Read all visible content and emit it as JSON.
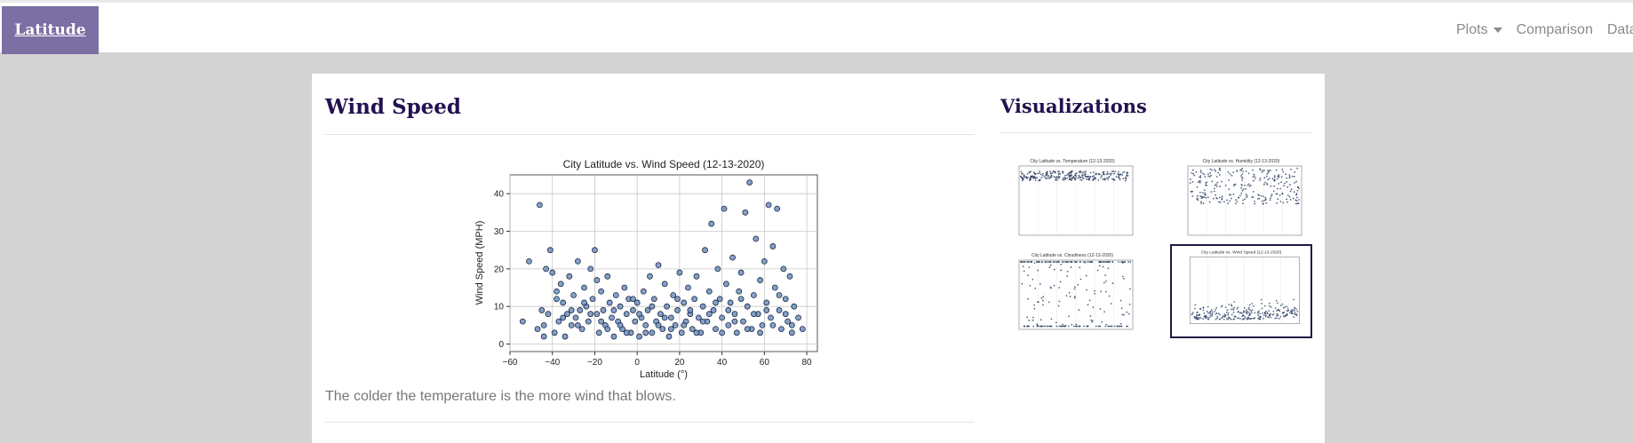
{
  "navbar": {
    "brand": "Latitude",
    "links": [
      {
        "label": "Plots",
        "has_dropdown": true
      },
      {
        "label": "Comparison",
        "has_dropdown": false
      },
      {
        "label": "Data",
        "has_dropdown": false
      }
    ]
  },
  "main": {
    "heading": "Wind Speed",
    "caption": "The colder the temperature is the more wind that blows."
  },
  "sidebar": {
    "heading": "Visualizations",
    "thumbnails": [
      {
        "title": "City Latitude vs. Temperature (12-13-2020)",
        "selected": false
      },
      {
        "title": "City Latitude vs. Humidity (12-13-2020)",
        "selected": false
      },
      {
        "title": "City Latitude vs. Cloudiness (12-13-2020)",
        "selected": false
      },
      {
        "title": "City Latitude vs. Wind Speed (12-13-2020)",
        "selected": true
      }
    ]
  },
  "colors": {
    "brand_bg": "#7c6fa3",
    "heading": "#24114f",
    "marker_fill": "#6f8fbf",
    "marker_edge": "#1d2a44"
  },
  "chart_data": {
    "type": "scatter",
    "title": "City Latitude vs. Wind Speed (12-13-2020)",
    "xlabel": "Latitude (°)",
    "ylabel": "Wind Speed (MPH)",
    "xlim": [
      -60,
      85
    ],
    "ylim": [
      -2,
      45
    ],
    "xticks": [
      -60,
      -40,
      -20,
      0,
      20,
      40,
      60,
      80
    ],
    "yticks": [
      0,
      10,
      20,
      30,
      40
    ],
    "grid": true,
    "points": [
      [
        -54,
        6
      ],
      [
        -51,
        22
      ],
      [
        -46,
        37
      ],
      [
        -45,
        9
      ],
      [
        -44,
        5
      ],
      [
        -43,
        20
      ],
      [
        -42,
        8
      ],
      [
        -41,
        25
      ],
      [
        -40,
        19
      ],
      [
        -39,
        3
      ],
      [
        -38,
        12
      ],
      [
        -37,
        6
      ],
      [
        -36,
        16
      ],
      [
        -35,
        11
      ],
      [
        -34,
        2
      ],
      [
        -33,
        8
      ],
      [
        -32,
        18
      ],
      [
        -31,
        5
      ],
      [
        -30,
        13
      ],
      [
        -29,
        7
      ],
      [
        -28,
        22
      ],
      [
        -27,
        9
      ],
      [
        -26,
        4
      ],
      [
        -25,
        15
      ],
      [
        -24,
        10
      ],
      [
        -23,
        6
      ],
      [
        -22,
        20
      ],
      [
        -21,
        12
      ],
      [
        -20,
        25
      ],
      [
        -19,
        8
      ],
      [
        -18,
        3
      ],
      [
        -17,
        14
      ],
      [
        -16,
        9
      ],
      [
        -15,
        5
      ],
      [
        -14,
        18
      ],
      [
        -13,
        11
      ],
      [
        -12,
        7
      ],
      [
        -11,
        2
      ],
      [
        -10,
        13
      ],
      [
        -9,
        6
      ],
      [
        -8,
        10
      ],
      [
        -7,
        4
      ],
      [
        -6,
        15
      ],
      [
        -5,
        8
      ],
      [
        -4,
        12
      ],
      [
        -3,
        3
      ],
      [
        -2,
        9
      ],
      [
        -1,
        6
      ],
      [
        0,
        11
      ],
      [
        1,
        2
      ],
      [
        2,
        7
      ],
      [
        3,
        14
      ],
      [
        4,
        5
      ],
      [
        5,
        9
      ],
      [
        6,
        18
      ],
      [
        7,
        3
      ],
      [
        8,
        12
      ],
      [
        9,
        6
      ],
      [
        10,
        21
      ],
      [
        11,
        8
      ],
      [
        12,
        4
      ],
      [
        13,
        16
      ],
      [
        14,
        10
      ],
      [
        15,
        2
      ],
      [
        16,
        7
      ],
      [
        17,
        13
      ],
      [
        18,
        5
      ],
      [
        19,
        9
      ],
      [
        20,
        19
      ],
      [
        21,
        3
      ],
      [
        22,
        11
      ],
      [
        23,
        6
      ],
      [
        24,
        15
      ],
      [
        25,
        8
      ],
      [
        26,
        4
      ],
      [
        27,
        12
      ],
      [
        28,
        18
      ],
      [
        29,
        7
      ],
      [
        30,
        3
      ],
      [
        31,
        10
      ],
      [
        32,
        25
      ],
      [
        33,
        6
      ],
      [
        34,
        14
      ],
      [
        35,
        32
      ],
      [
        36,
        9
      ],
      [
        37,
        4
      ],
      [
        38,
        20
      ],
      [
        39,
        12
      ],
      [
        40,
        7
      ],
      [
        41,
        36
      ],
      [
        42,
        16
      ],
      [
        43,
        5
      ],
      [
        44,
        11
      ],
      [
        45,
        23
      ],
      [
        46,
        8
      ],
      [
        47,
        3
      ],
      [
        48,
        14
      ],
      [
        49,
        19
      ],
      [
        50,
        6
      ],
      [
        51,
        35
      ],
      [
        52,
        10
      ],
      [
        53,
        43
      ],
      [
        54,
        4
      ],
      [
        55,
        13
      ],
      [
        56,
        28
      ],
      [
        57,
        8
      ],
      [
        58,
        17
      ],
      [
        59,
        5
      ],
      [
        60,
        22
      ],
      [
        61,
        11
      ],
      [
        62,
        37
      ],
      [
        63,
        7
      ],
      [
        64,
        26
      ],
      [
        65,
        15
      ],
      [
        66,
        36
      ],
      [
        67,
        9
      ],
      [
        68,
        4
      ],
      [
        69,
        20
      ],
      [
        70,
        12
      ],
      [
        71,
        6
      ],
      [
        72,
        18
      ],
      [
        73,
        3
      ],
      [
        74,
        10
      ],
      [
        76,
        7
      ],
      [
        78,
        4
      ],
      [
        -47,
        4
      ],
      [
        -44,
        2
      ],
      [
        -38,
        14
      ],
      [
        -35,
        7
      ],
      [
        -31,
        9
      ],
      [
        -28,
        5
      ],
      [
        -25,
        11
      ],
      [
        -22,
        8
      ],
      [
        -19,
        17
      ],
      [
        -17,
        6
      ],
      [
        -14,
        4
      ],
      [
        -11,
        9
      ],
      [
        -8,
        5
      ],
      [
        -5,
        3
      ],
      [
        -2,
        12
      ],
      [
        1,
        8
      ],
      [
        4,
        3
      ],
      [
        7,
        10
      ],
      [
        10,
        5
      ],
      [
        13,
        7
      ],
      [
        16,
        4
      ],
      [
        19,
        12
      ],
      [
        22,
        5
      ],
      [
        25,
        9
      ],
      [
        28,
        3
      ],
      [
        31,
        6
      ],
      [
        34,
        8
      ],
      [
        37,
        11
      ],
      [
        40,
        3
      ],
      [
        43,
        9
      ],
      [
        46,
        6
      ],
      [
        49,
        12
      ],
      [
        52,
        4
      ],
      [
        55,
        8
      ],
      [
        58,
        3
      ],
      [
        61,
        9
      ],
      [
        64,
        5
      ],
      [
        67,
        13
      ],
      [
        70,
        8
      ],
      [
        73,
        5
      ]
    ]
  }
}
